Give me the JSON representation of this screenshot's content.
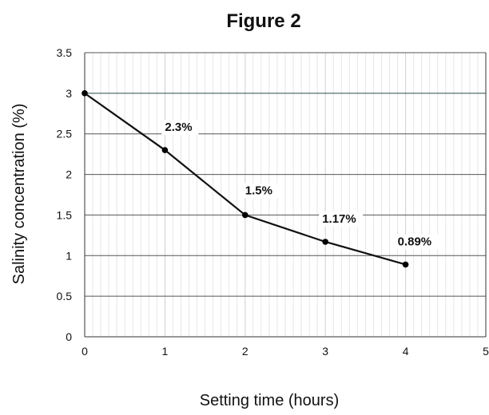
{
  "chart_data": {
    "type": "line",
    "title": "Figure 2",
    "xlabel": "Setting time (hours)",
    "ylabel": "Salinity concentration (%)",
    "xlim": [
      0,
      5
    ],
    "ylim": [
      0,
      3.5
    ],
    "x_ticks": [
      "0",
      "1",
      "2",
      "3",
      "4",
      "5"
    ],
    "y_ticks": [
      "0",
      "0.5",
      "1",
      "1.5",
      "2",
      "2.5",
      "3",
      "3.5"
    ],
    "grid": true,
    "legend": "none",
    "series": [
      {
        "x": [
          0,
          1,
          2,
          3,
          4
        ],
        "values": [
          3.0,
          2.3,
          1.5,
          1.17,
          0.89
        ]
      }
    ],
    "data_labels": [
      "",
      "2.3%",
      "1.5%",
      "1.17%",
      "0.89%"
    ],
    "colors": {
      "line": "#111111",
      "marker": "#000000",
      "grid": "#cfcfcf",
      "axis": "#333333"
    }
  }
}
